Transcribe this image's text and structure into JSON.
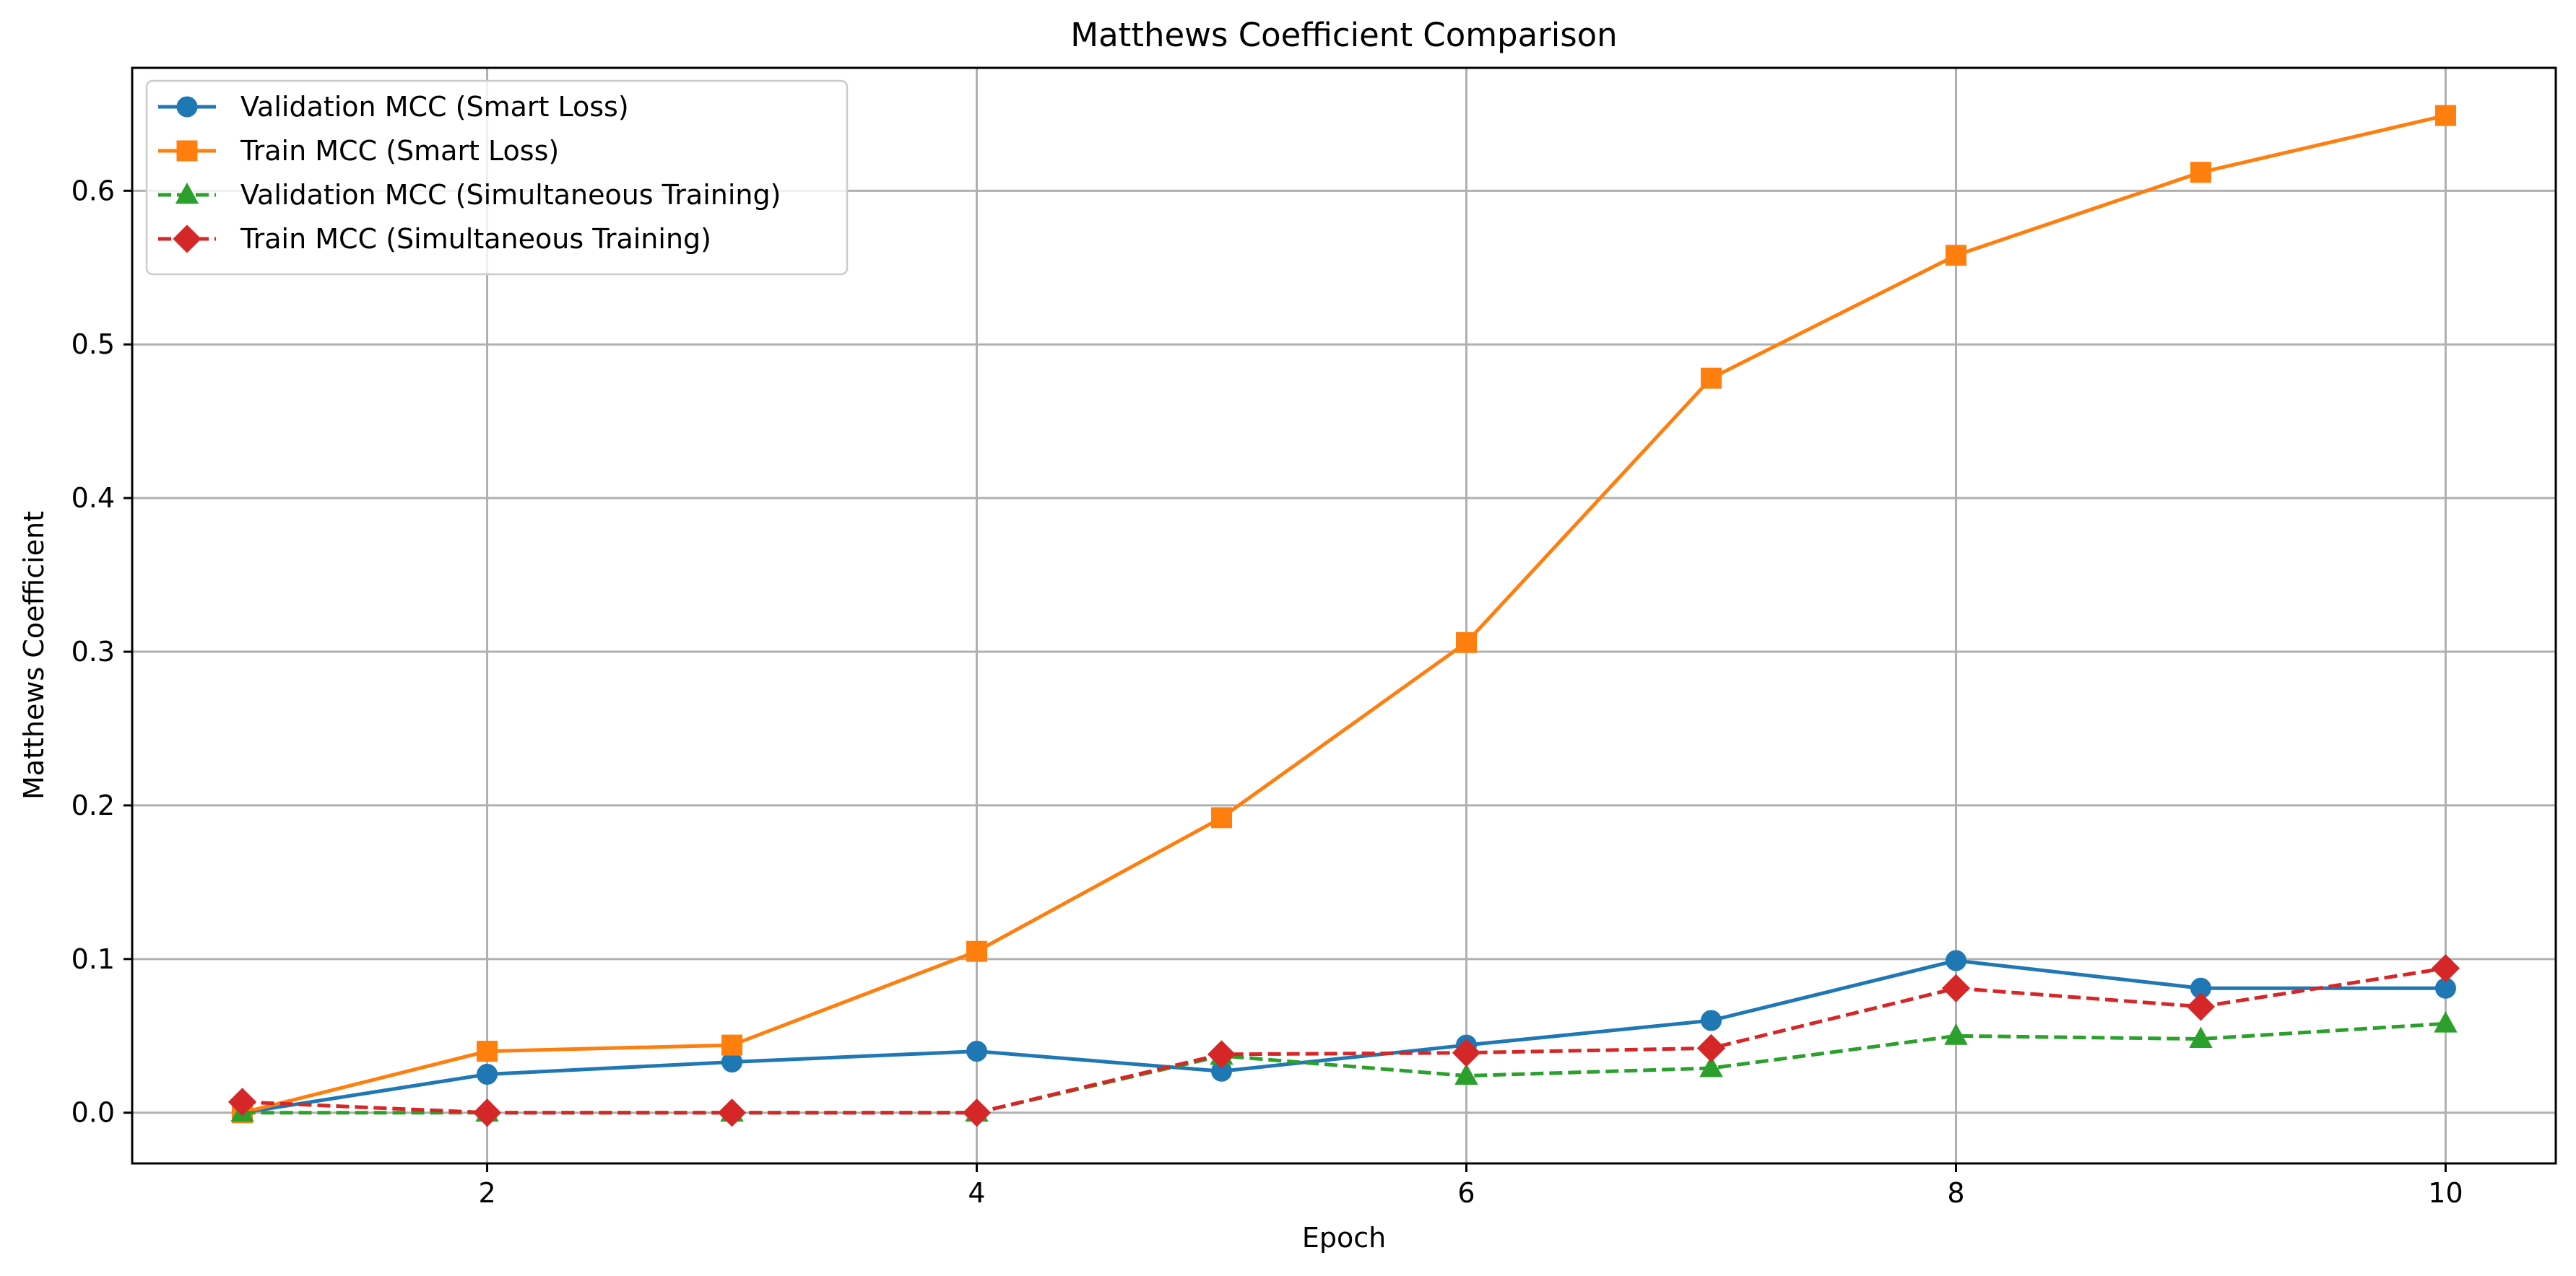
{
  "chart_data": {
    "type": "line",
    "title": "Matthews Coefficient Comparison",
    "xlabel": "Epoch",
    "ylabel": "Matthews Coefficient",
    "xlim": [
      0.55,
      10.45
    ],
    "ylim": [
      -0.033,
      0.68
    ],
    "xticks": [
      2,
      4,
      6,
      8,
      10
    ],
    "yticks": [
      0.0,
      0.1,
      0.2,
      0.3,
      0.4,
      0.5,
      0.6
    ],
    "xtick_labels": [
      "2",
      "4",
      "6",
      "8",
      "10"
    ],
    "ytick_labels": [
      "0.0",
      "0.1",
      "0.2",
      "0.3",
      "0.4",
      "0.5",
      "0.6"
    ],
    "grid": true,
    "legend_position": "upper-left",
    "x": [
      1,
      2,
      3,
      4,
      5,
      6,
      7,
      8,
      9,
      10
    ],
    "series": [
      {
        "name": "Validation MCC (Smart Loss)",
        "values": [
          0.0,
          0.025,
          0.033,
          0.04,
          0.027,
          0.044,
          0.06,
          0.099,
          0.081,
          0.081
        ],
        "color": "#1f77b4",
        "line_style": "solid",
        "marker": "circle"
      },
      {
        "name": "Train MCC (Smart Loss)",
        "values": [
          0.0,
          0.04,
          0.044,
          0.105,
          0.192,
          0.306,
          0.478,
          0.558,
          0.612,
          0.649
        ],
        "color": "#ff7f0e",
        "line_style": "solid",
        "marker": "square"
      },
      {
        "name": "Validation MCC (Simultaneous Training)",
        "values": [
          0.0,
          0.0,
          0.0,
          0.0,
          0.037,
          0.024,
          0.029,
          0.05,
          0.048,
          0.058
        ],
        "color": "#2ca02c",
        "line_style": "dashed",
        "marker": "triangle-up"
      },
      {
        "name": "Train MCC (Simultaneous Training)",
        "values": [
          0.007,
          0.0,
          0.0,
          0.0,
          0.038,
          0.039,
          0.042,
          0.081,
          0.069,
          0.094
        ],
        "color": "#d62728",
        "line_style": "dashed",
        "marker": "diamond"
      }
    ]
  }
}
